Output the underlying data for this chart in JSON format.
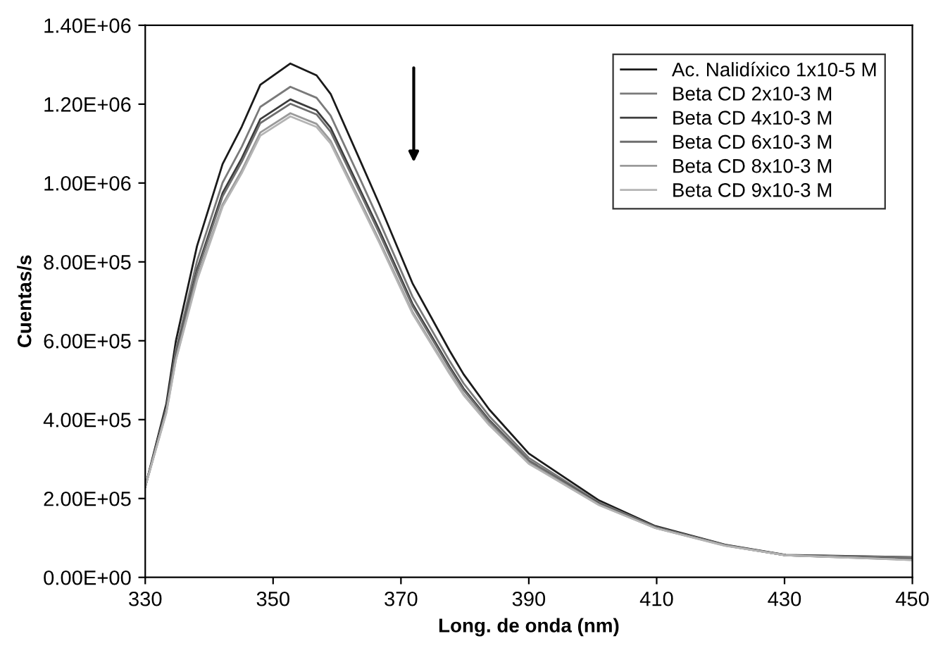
{
  "chart_data": {
    "type": "line",
    "xlabel": "Long. de onda (nm)",
    "ylabel": "Cuentas/s",
    "x": [
      330,
      333.3,
      334.8,
      338.1,
      342.1,
      345.1,
      348,
      352.7,
      356.8,
      359,
      363.7,
      366.6,
      371.8,
      377.6,
      379.8,
      383.8,
      390,
      401,
      409.8,
      420.7,
      430.2,
      450
    ],
    "series": [
      {
        "name": "Ac. Nalidíxico 1x10-5 M",
        "color": "#1a1a1a",
        "values": [
          230000,
          440000,
          600000,
          840000,
          1048000,
          1143000,
          1249000,
          1303000,
          1273000,
          1226000,
          1054000,
          947000,
          746000,
          575000,
          515000,
          426000,
          314000,
          195000,
          130000,
          83000,
          57000,
          51000
        ]
      },
      {
        "name": "Beta CD 2x10-3 M",
        "color": "#7a7a7a",
        "values": [
          230000,
          430000,
          578000,
          802000,
          1001000,
          1092000,
          1193000,
          1244000,
          1216000,
          1171000,
          1007000,
          904000,
          712000,
          549000,
          492000,
          409000,
          303000,
          190000,
          128000,
          82000,
          56000,
          51000
        ]
      },
      {
        "name": "Beta CD 4x10-3 M",
        "color": "#3c3c3c",
        "values": [
          230000,
          425000,
          566000,
          781000,
          975000,
          1063000,
          1162000,
          1212000,
          1184000,
          1140000,
          980000,
          881000,
          694000,
          535000,
          479000,
          399000,
          296000,
          187000,
          126000,
          81000,
          56000,
          46000
        ]
      },
      {
        "name": "Beta CD 6x10-3 M",
        "color": "#6e6e6e",
        "values": [
          230000,
          423000,
          563000,
          774000,
          966000,
          1054000,
          1152000,
          1201000,
          1174000,
          1130000,
          972000,
          873000,
          688000,
          530000,
          475000,
          396000,
          295000,
          186000,
          126000,
          81000,
          56000,
          45000
        ]
      },
      {
        "name": "Beta CD 8x10-3 M",
        "color": "#9a9a9a",
        "values": [
          230000,
          419000,
          553000,
          759000,
          946000,
          1032000,
          1128000,
          1177000,
          1150000,
          1107000,
          952000,
          855000,
          674000,
          519000,
          465000,
          389000,
          290000,
          184000,
          125000,
          81000,
          56000,
          44000
        ]
      },
      {
        "name": "Beta CD 9x10-3 M",
        "color": "#b4b4b4",
        "values": [
          230000,
          417000,
          551000,
          753000,
          940000,
          1025000,
          1120000,
          1169000,
          1142000,
          1100000,
          945000,
          849000,
          669000,
          516000,
          462000,
          386000,
          288000,
          183000,
          125000,
          80000,
          56000,
          44000
        ]
      }
    ],
    "xlim": [
      330,
      450
    ],
    "xticks": [
      330,
      350,
      370,
      390,
      410,
      430,
      450
    ],
    "ylim": [
      0,
      1400000
    ],
    "yticks": [
      {
        "value": 0,
        "label": "0.00E+00"
      },
      {
        "value": 200000,
        "label": "2.00E+05"
      },
      {
        "value": 400000,
        "label": "4.00E+05"
      },
      {
        "value": 600000,
        "label": "6.00E+05"
      },
      {
        "value": 800000,
        "label": "8.00E+05"
      },
      {
        "value": 1000000,
        "label": "1.00E+06"
      },
      {
        "value": 1200000,
        "label": "1.20E+06"
      },
      {
        "value": 1400000,
        "label": "1.40E+06"
      }
    ],
    "legend": "top right",
    "grid": false,
    "marker": "none",
    "line_style": "solid"
  }
}
